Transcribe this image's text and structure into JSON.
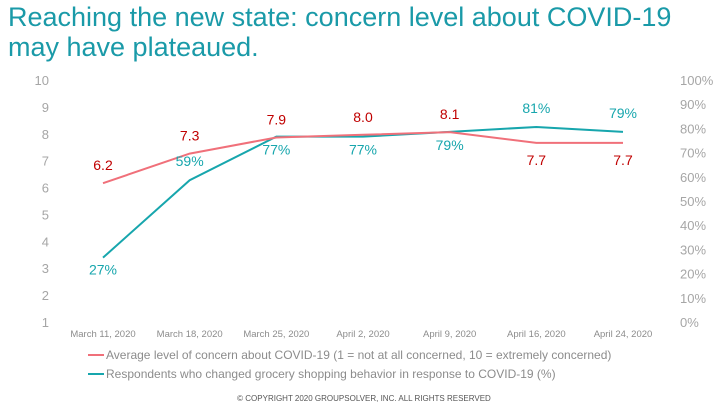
{
  "title": "Reaching the new state: concern level about COVID-19 may have plateaued.",
  "copyright": "© COPYRIGHT 2020 GROUPSOLVER, INC. ALL RIGHTS RESERVED",
  "colors": {
    "title": "#1a9aa8",
    "concern": "#f0707a",
    "concern_label": "#c00000",
    "grocery": "#17a6ad",
    "grocery_label": "#17a6ad"
  },
  "chart_data": {
    "type": "line",
    "categories": [
      "March 11, 2020",
      "March 18, 2020",
      "March 25, 2020",
      "April 2, 2020",
      "April 9, 2020",
      "April 16, 2020",
      "April 24, 2020"
    ],
    "y_left": {
      "ylim": [
        1,
        10
      ],
      "ticks": [
        "1",
        "2",
        "3",
        "4",
        "5",
        "6",
        "7",
        "8",
        "9",
        "10"
      ]
    },
    "y_right": {
      "ylim": [
        0,
        100
      ],
      "ticks": [
        "0%",
        "10%",
        "20%",
        "30%",
        "40%",
        "50%",
        "60%",
        "70%",
        "80%",
        "90%",
        "100%"
      ]
    },
    "grid": false,
    "legend_position": "bottom",
    "series": [
      {
        "name": "Average level of concern about COVID-19 (1 = not at all concerned, 10 = extremely concerned)",
        "axis": "left",
        "color": "#f0707a",
        "values": [
          6.2,
          7.3,
          7.9,
          8.0,
          8.1,
          7.7,
          7.7
        ],
        "labels": [
          "6.2",
          "7.3",
          "7.9",
          "8.0",
          "8.1",
          "7.7",
          "7.7"
        ]
      },
      {
        "name": "Respondents who changed grocery shopping behavior in response to COVID-19 (%)",
        "axis": "right",
        "color": "#17a6ad",
        "values": [
          27,
          59,
          77,
          77,
          79,
          81,
          79
        ],
        "labels": [
          "27%",
          "59%",
          "77%",
          "77%",
          "79%",
          "81%",
          "79%"
        ]
      }
    ]
  }
}
